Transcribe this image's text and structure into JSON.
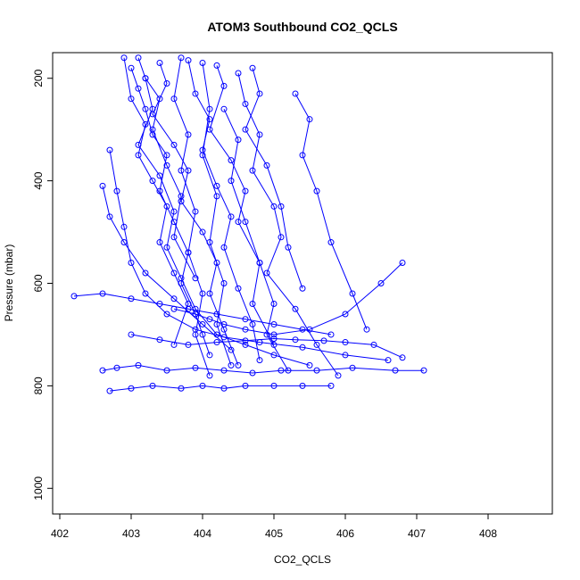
{
  "chart_data": {
    "type": "line",
    "title": "ATOM3 Southbound CO2_QCLS",
    "xlabel": "CO2_QCLS",
    "ylabel": "Pressure (mbar)",
    "xlim": [
      401.9,
      408.9
    ],
    "ylim": [
      1050,
      150
    ],
    "y_reversed": true,
    "x_ticks": [
      402,
      403,
      404,
      405,
      406,
      407,
      408
    ],
    "y_ticks": [
      200,
      400,
      600,
      800,
      1000
    ],
    "grid": false,
    "legend": "none",
    "marker": "open-circle",
    "color": "#0000ff",
    "series": [
      {
        "x": [
          403.0,
          403.1,
          403.2,
          403.3,
          403.5,
          403.4,
          403.6,
          403.8,
          403.7,
          403.9,
          404.0,
          404.1
        ],
        "y": [
          180,
          220,
          260,
          310,
          350,
          420,
          480,
          540,
          600,
          660,
          700,
          740
        ]
      },
      {
        "x": [
          402.9,
          403.0,
          403.2,
          403.1,
          403.3,
          403.5,
          403.4,
          403.6,
          403.8,
          403.6
        ],
        "y": [
          160,
          240,
          290,
          350,
          400,
          450,
          520,
          580,
          640,
          720
        ]
      },
      {
        "x": [
          403.4,
          403.5,
          403.3,
          403.6,
          403.8,
          403.7,
          404.0,
          404.2,
          404.1,
          404.3,
          404.5
        ],
        "y": [
          170,
          210,
          270,
          330,
          380,
          440,
          500,
          560,
          620,
          690,
          760
        ]
      },
      {
        "x": [
          403.8,
          403.9,
          404.1,
          404.0,
          404.2,
          404.4,
          404.3,
          404.5,
          404.7,
          404.8
        ],
        "y": [
          165,
          230,
          280,
          340,
          410,
          470,
          530,
          610,
          680,
          750
        ]
      },
      {
        "x": [
          404.2,
          404.3,
          404.1,
          404.4,
          404.6,
          404.5,
          404.8,
          405.0,
          404.9,
          405.2
        ],
        "y": [
          175,
          215,
          300,
          360,
          420,
          480,
          560,
          640,
          700,
          770
        ]
      },
      {
        "x": [
          404.5,
          404.6,
          404.8,
          404.7,
          405.0,
          405.1,
          404.9,
          405.3,
          405.6,
          405.9
        ],
        "y": [
          190,
          250,
          310,
          380,
          450,
          510,
          580,
          650,
          720,
          780
        ]
      },
      {
        "x": [
          403.2,
          403.3,
          403.1,
          403.4,
          403.6,
          403.5,
          403.7,
          403.9,
          404.2,
          404.6,
          405.0,
          405.5
        ],
        "y": [
          200,
          260,
          330,
          390,
          460,
          530,
          590,
          650,
          700,
          720,
          740,
          760
        ]
      },
      {
        "x": [
          402.7,
          402.8,
          402.9,
          403.0,
          403.2,
          403.5,
          403.9,
          404.3,
          404.8,
          405.4,
          406.0,
          406.6
        ],
        "y": [
          340,
          420,
          490,
          560,
          620,
          660,
          690,
          705,
          715,
          725,
          740,
          750
        ]
      },
      {
        "x": [
          402.2,
          402.6,
          403.0,
          403.4,
          403.8,
          404.2,
          404.6,
          405.0,
          405.4,
          405.8
        ],
        "y": [
          625,
          620,
          630,
          640,
          650,
          660,
          670,
          680,
          690,
          700
        ]
      },
      {
        "x": [
          402.6,
          402.8,
          403.1,
          403.5,
          403.9,
          404.3,
          404.7,
          405.1,
          405.6,
          406.1,
          406.7,
          407.1
        ],
        "y": [
          770,
          765,
          760,
          770,
          765,
          770,
          775,
          770,
          770,
          765,
          770,
          770
        ]
      },
      {
        "x": [
          402.7,
          403.0,
          403.3,
          403.7,
          404.0,
          404.3,
          404.6,
          405.0,
          405.4,
          405.8
        ],
        "y": [
          810,
          805,
          800,
          805,
          800,
          805,
          800,
          800,
          800,
          800
        ]
      },
      {
        "x": [
          403.0,
          403.4,
          403.8,
          404.2,
          404.6,
          405.0,
          405.3,
          405.7,
          406.0,
          406.4,
          406.8
        ],
        "y": [
          700,
          710,
          720,
          715,
          712,
          708,
          710,
          712,
          715,
          720,
          745
        ]
      },
      {
        "x": [
          403.6,
          403.9,
          404.1,
          404.3,
          404.6,
          405.0,
          405.5,
          406.0,
          406.5,
          406.8
        ],
        "y": [
          650,
          660,
          670,
          680,
          690,
          700,
          690,
          660,
          600,
          560
        ]
      },
      {
        "x": [
          404.0,
          404.1,
          404.0,
          404.2,
          404.1,
          404.3,
          404.2,
          404.4
        ],
        "y": [
          170,
          260,
          350,
          430,
          520,
          600,
          680,
          760
        ]
      },
      {
        "x": [
          403.7,
          403.6,
          403.8,
          403.7,
          403.9,
          403.8,
          404.0,
          403.9,
          404.1
        ],
        "y": [
          160,
          240,
          310,
          380,
          460,
          540,
          620,
          700,
          780
        ]
      },
      {
        "x": [
          404.3,
          404.5,
          404.4,
          404.6,
          404.8,
          404.7,
          405.0
        ],
        "y": [
          260,
          320,
          400,
          480,
          560,
          640,
          720
        ]
      },
      {
        "x": [
          402.6,
          402.7,
          402.9,
          403.2,
          403.6,
          404.0,
          404.4
        ],
        "y": [
          410,
          470,
          520,
          580,
          630,
          680,
          730
        ]
      },
      {
        "x": [
          405.3,
          405.5,
          405.4,
          405.6,
          405.8,
          406.1,
          406.3
        ],
        "y": [
          230,
          280,
          350,
          420,
          520,
          620,
          690
        ]
      },
      {
        "x": [
          403.1,
          403.2,
          403.4,
          403.3,
          403.5,
          403.7,
          403.6,
          403.9
        ],
        "y": [
          160,
          200,
          240,
          300,
          370,
          430,
          510,
          590
        ]
      },
      {
        "x": [
          404.7,
          404.8,
          404.6,
          404.9,
          405.1,
          405.2,
          405.4
        ],
        "y": [
          180,
          230,
          300,
          370,
          450,
          530,
          610
        ]
      }
    ]
  }
}
